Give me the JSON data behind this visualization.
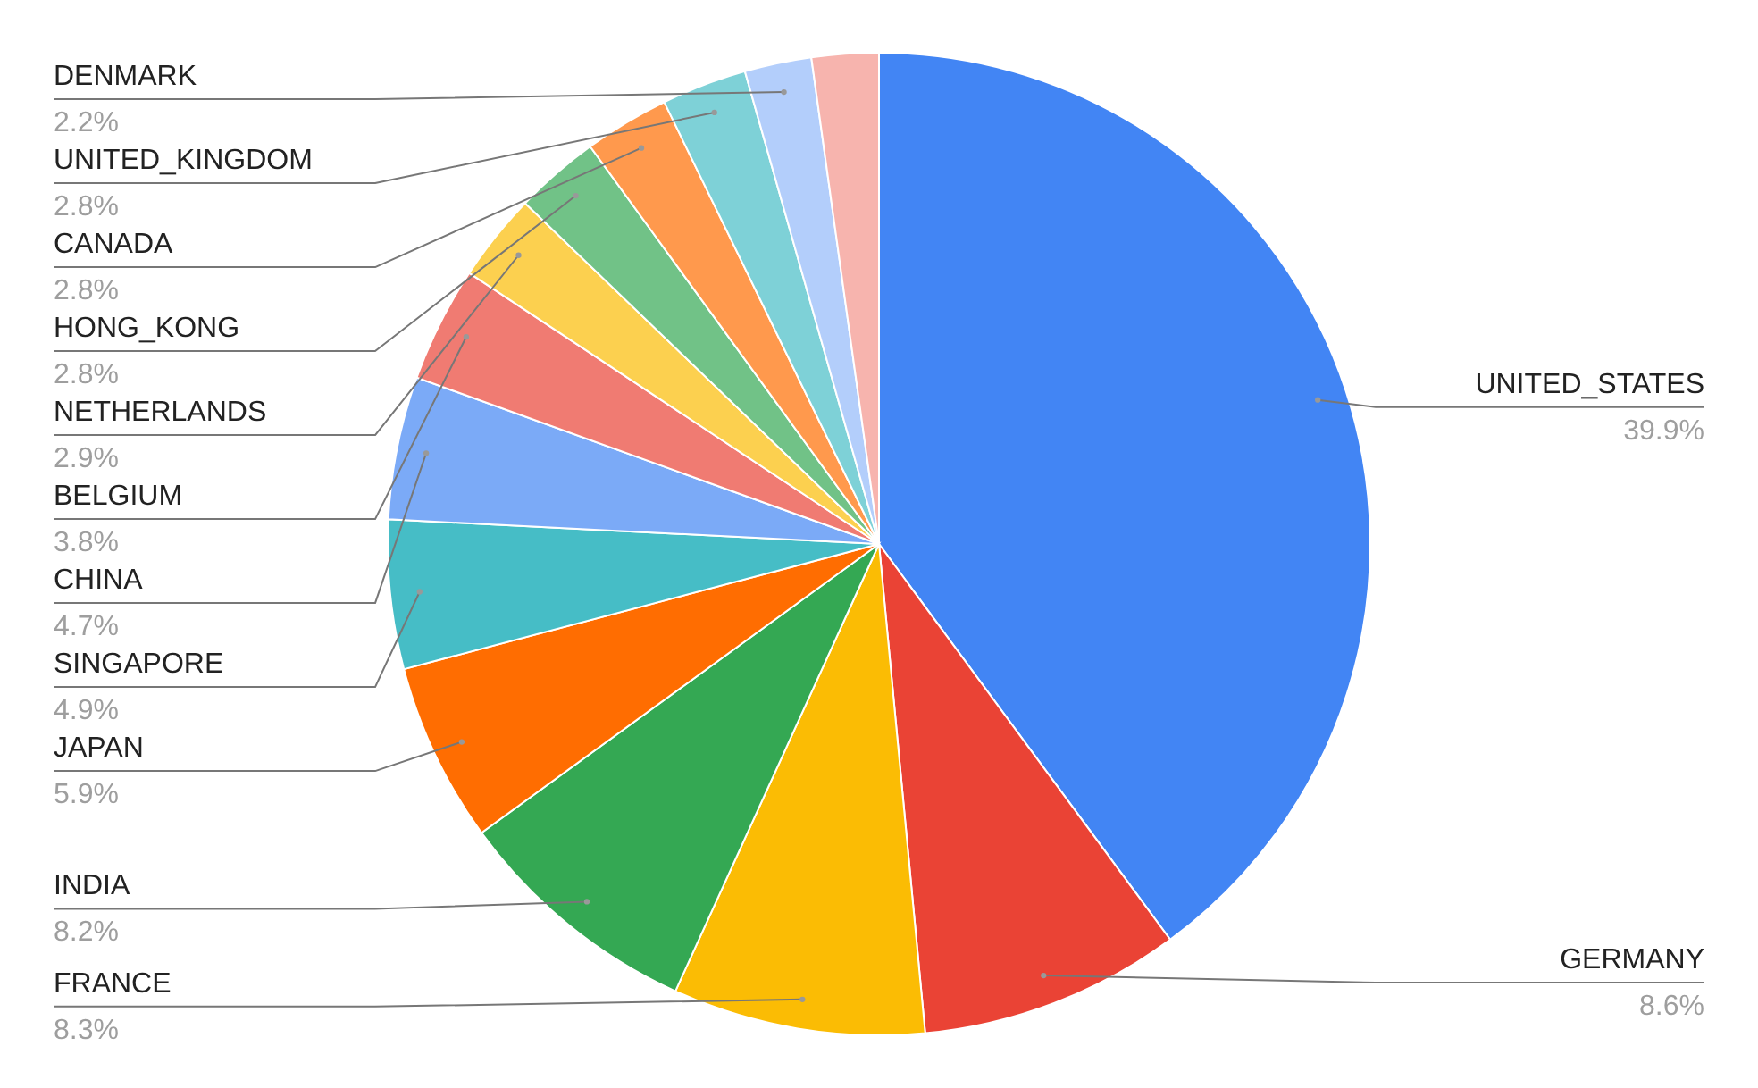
{
  "chart_data": {
    "type": "pie",
    "categories": [
      "UNITED_STATES",
      "GERMANY",
      "FRANCE",
      "INDIA",
      "JAPAN",
      "SINGAPORE",
      "CHINA",
      "BELGIUM",
      "NETHERLANDS",
      "HONG_KONG",
      "CANADA",
      "UNITED_KINGDOM",
      "DENMARK",
      null
    ],
    "values": [
      39.9,
      8.6,
      8.3,
      8.2,
      5.9,
      4.9,
      4.7,
      3.8,
      2.9,
      2.8,
      2.8,
      2.8,
      2.2,
      2.2
    ],
    "colors": [
      "#4285f4",
      "#ea4335",
      "#fbbc04",
      "#34a853",
      "#ff6d01",
      "#46bdc6",
      "#7baaf7",
      "#f07b72",
      "#fcd04f",
      "#71c287",
      "#ff994d",
      "#7ed1d7",
      "#b3cefb",
      "#f7b4ae"
    ],
    "value_labels": [
      "39.9%",
      "8.6%",
      "8.3%",
      "8.2%",
      "5.9%",
      "4.9%",
      "4.7%",
      "3.8%",
      "2.9%",
      "2.8%",
      "2.8%",
      "2.8%",
      "2.2%",
      null
    ]
  }
}
